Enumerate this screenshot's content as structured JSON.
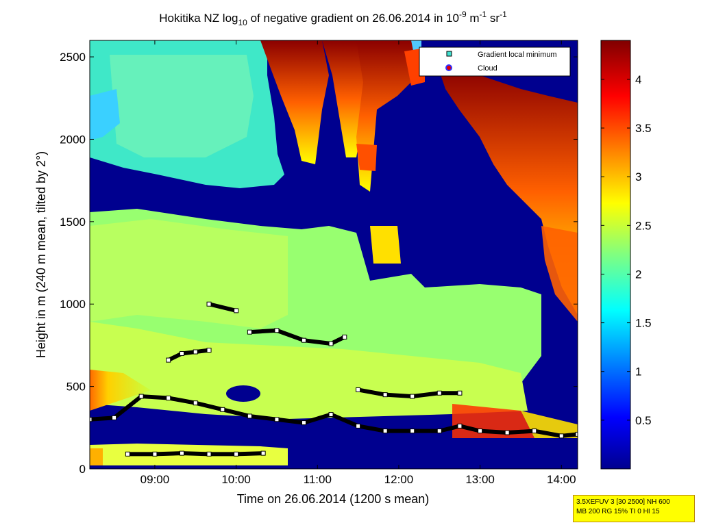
{
  "chart_data": {
    "type": "heatmap",
    "title": {
      "prefix": "Hokitika NZ log",
      "prefix_sub": "10",
      "middle": " of negative gradient on 26.06.2014 in 10",
      "exp1": "-9",
      "unit1": " m",
      "exp2": "-1",
      "unit2": " sr",
      "exp3": "-1"
    },
    "xlabel": "Time on 26.06.2014 (1200 s mean)",
    "ylabel": "Height in m (240 m mean, tilted by 2°)",
    "xlim": [
      "08:12",
      "14:12"
    ],
    "ylim": [
      0,
      2600
    ],
    "x_ticks": [
      "09:00",
      "10:00",
      "11:00",
      "12:00",
      "13:00",
      "14:00"
    ],
    "y_ticks": [
      0,
      500,
      1000,
      1500,
      2000,
      2500
    ],
    "colorbar": {
      "range": [
        0,
        4.4
      ],
      "ticks": [
        0.5,
        1,
        1.5,
        2,
        2.5,
        3,
        3.5,
        4
      ],
      "tick_labels": [
        "0.5",
        "1",
        "1.5",
        "2",
        "2.5",
        "3",
        "3.5",
        "4"
      ],
      "colormap": "jet"
    },
    "legend": {
      "placement": "top-right",
      "entries": [
        {
          "label": "Gradient local minimum",
          "marker": "square",
          "color": "#40e0d0"
        },
        {
          "label": "Cloud",
          "marker": "circle",
          "color": "#e00000",
          "edge": "#3030ff"
        }
      ]
    },
    "series": [
      {
        "label_ref": "Gradient local minimum",
        "x": [
          "08:12",
          "08:30",
          "08:50",
          "09:10",
          "09:30",
          "09:50",
          "10:10",
          "10:30",
          "10:50",
          "11:10",
          "11:30",
          "11:50",
          "12:10",
          "12:30",
          "12:45",
          "13:00",
          "13:20",
          "13:40",
          "14:00",
          "14:12"
        ],
        "y": [
          300,
          310,
          440,
          430,
          400,
          360,
          320,
          300,
          280,
          330,
          260,
          230,
          230,
          230,
          260,
          230,
          220,
          230,
          200,
          210
        ]
      },
      {
        "label_ref": "Gradient local minimum",
        "x": [
          "08:40",
          "09:00",
          "09:20",
          "09:40",
          "10:00",
          "10:20"
        ],
        "y": [
          90,
          90,
          95,
          90,
          90,
          95
        ]
      },
      {
        "label_ref": "Gradient local minimum",
        "x": [
          "10:10",
          "10:30",
          "10:50",
          "11:10",
          "11:20"
        ],
        "y": [
          830,
          840,
          780,
          760,
          800
        ]
      },
      {
        "label_ref": "Gradient local minimum",
        "x": [
          "11:30",
          "11:50",
          "12:10",
          "12:30",
          "12:45"
        ],
        "y": [
          480,
          450,
          440,
          460,
          460
        ]
      },
      {
        "label_ref": "Gradient local minimum",
        "x": [
          "09:40",
          "10:00"
        ],
        "y": [
          1000,
          960
        ]
      },
      {
        "label_ref": "Gradient local minimum",
        "x": [
          "09:10",
          "09:20",
          "09:30",
          "09:40"
        ],
        "y": [
          660,
          700,
          710,
          720
        ]
      }
    ],
    "info_box": [
      "3.5XEFUV 3 [30 2500] NH 600",
      "MB 200 RG 15% TI 0 HI 15"
    ],
    "colors": {
      "background_low": "#00008f",
      "high": "#800000",
      "legend_square": "#40e0d0",
      "cloud": "#e00000"
    }
  }
}
